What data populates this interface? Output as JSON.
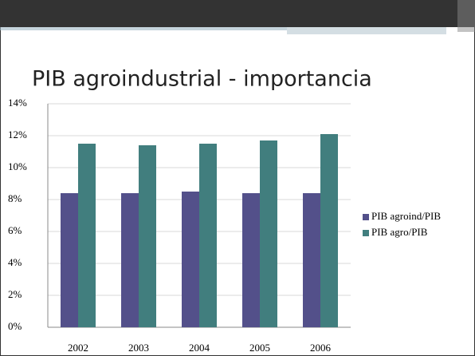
{
  "chart_data": {
    "type": "bar",
    "title": "PIB agroindustrial - importancia",
    "categories": [
      "2002",
      "2003",
      "2004",
      "2005",
      "2006"
    ],
    "series": [
      {
        "name": "PIB agroind/PIB",
        "color": "#53508a",
        "values": [
          8.4,
          8.4,
          8.5,
          8.4,
          8.4
        ]
      },
      {
        "name": "PIB agro/PIB",
        "color": "#417e7e",
        "values": [
          11.5,
          11.4,
          11.5,
          11.7,
          12.1
        ]
      }
    ],
    "ylim": [
      0,
      14
    ],
    "yticks": [
      {
        "value": 0,
        "label": "0%"
      },
      {
        "value": 2,
        "label": "2%"
      },
      {
        "value": 4,
        "label": "4%"
      },
      {
        "value": 6,
        "label": "6%"
      },
      {
        "value": 8,
        "label": "8%"
      },
      {
        "value": 10,
        "label": "10%"
      },
      {
        "value": 12,
        "label": "12%"
      },
      {
        "value": 14,
        "label": "14%"
      }
    ],
    "grid": true,
    "legend": "right"
  }
}
